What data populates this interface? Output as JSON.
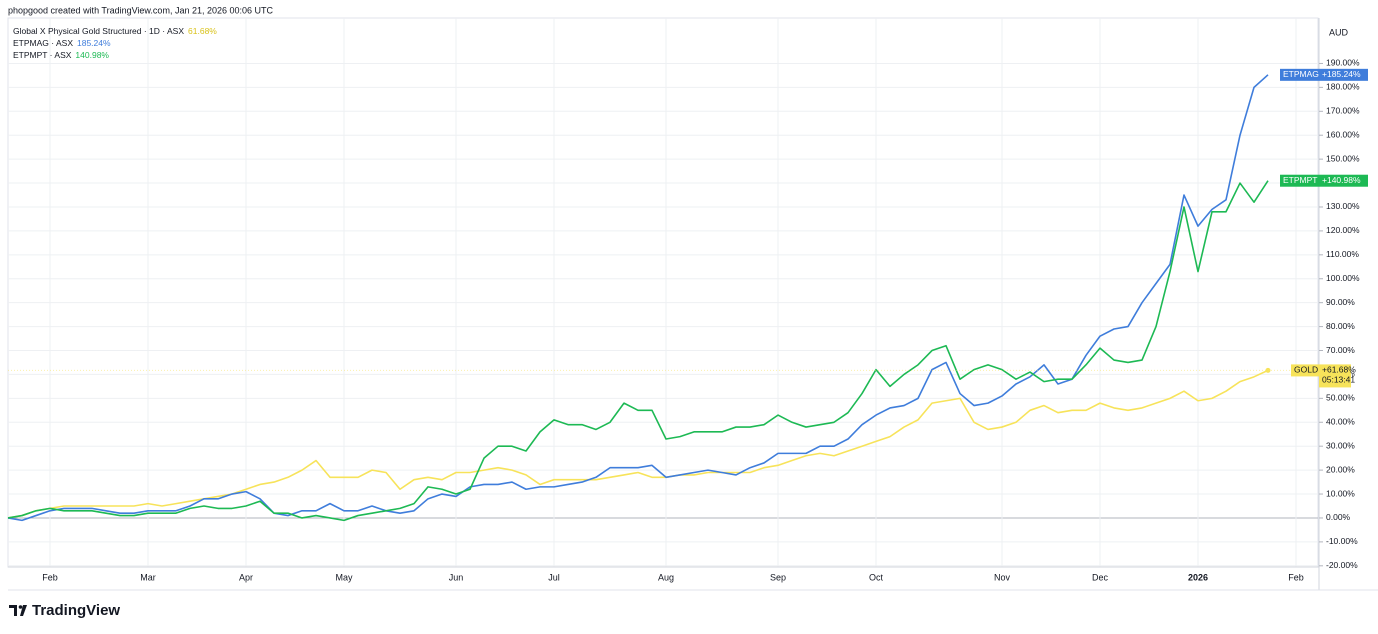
{
  "header": "phopgood created with TradingView.com, Jan 21, 2026 00:06 UTC",
  "brand": "TradingView",
  "chart_data": {
    "type": "line",
    "currency": "AUD",
    "categories": [
      null,
      null,
      null,
      "Feb",
      null,
      null,
      null,
      null,
      null,
      null,
      "Mar",
      null,
      null,
      null,
      null,
      null,
      null,
      "Apr",
      null,
      null,
      null,
      null,
      null,
      null,
      "May",
      null,
      null,
      null,
      null,
      null,
      null,
      null,
      "Jun",
      null,
      null,
      null,
      null,
      null,
      null,
      "Jul",
      null,
      null,
      null,
      null,
      null,
      null,
      null,
      "Aug",
      null,
      null,
      null,
      null,
      null,
      null,
      null,
      "Sep",
      null,
      null,
      null,
      null,
      null,
      null,
      "Oct",
      null,
      null,
      null,
      null,
      null,
      null,
      null,
      null,
      "Nov",
      null,
      null,
      null,
      null,
      null,
      null,
      "Dec",
      null,
      null,
      null,
      null,
      null,
      null,
      "2026",
      null,
      null,
      null,
      null,
      null,
      null,
      "Feb",
      null
    ],
    "series": [
      {
        "name": "GOLD",
        "legend": "Global X Physical Gold Structured · 1D · ASX",
        "legend_value": "61.68%",
        "tag": "+61.68%",
        "countdown": "05:13:41",
        "color": "#f7e35a",
        "values": [
          0,
          1,
          3,
          4,
          5,
          5,
          5,
          5,
          5,
          5,
          6,
          5,
          6,
          7,
          8,
          9,
          10,
          12,
          14,
          15,
          17,
          20,
          24,
          17,
          17,
          17,
          20,
          19,
          12,
          16,
          17,
          16,
          19,
          19,
          20,
          21,
          20,
          18,
          14,
          16,
          16,
          16,
          16,
          17,
          18,
          19,
          17,
          17,
          18,
          18,
          19,
          19,
          19,
          19,
          21,
          22,
          24,
          26,
          27,
          26,
          28,
          30,
          32,
          34,
          38,
          41,
          48,
          49,
          50,
          40,
          37,
          38,
          40,
          45,
          47,
          44,
          45,
          45,
          48,
          46,
          45,
          46,
          48,
          50,
          53,
          49,
          50,
          53,
          57,
          59,
          61.68,
          null,
          null,
          null
        ]
      },
      {
        "name": "ETPMAG",
        "legend": "ETPMAG · ASX",
        "legend_value": "185.24%",
        "tag": "+185.24%",
        "color": "#3f7ddb",
        "values": [
          0,
          -1,
          1,
          3,
          4,
          4,
          4,
          3,
          2,
          2,
          3,
          3,
          3,
          5,
          8,
          8,
          10,
          11,
          8,
          2,
          1,
          3,
          3,
          6,
          3,
          3,
          5,
          3,
          2,
          3,
          8,
          10,
          9,
          13,
          14,
          14,
          15,
          12,
          13,
          13,
          14,
          15,
          17,
          21,
          21,
          21,
          22,
          17,
          18,
          19,
          20,
          19,
          18,
          21,
          23,
          27,
          27,
          27,
          30,
          30,
          33,
          39,
          43,
          46,
          47,
          50,
          62,
          65,
          52,
          47,
          48,
          51,
          56,
          59,
          64,
          56,
          58,
          68,
          76,
          79,
          80,
          90,
          98,
          106,
          135,
          122,
          129,
          133,
          160,
          180,
          185.24,
          null,
          null,
          null
        ]
      },
      {
        "name": "ETPMPT",
        "legend": "ETPMPT · ASX",
        "legend_value": "140.98%",
        "tag": "+140.98%",
        "color": "#1db954",
        "values": [
          0,
          1,
          3,
          4,
          3,
          3,
          3,
          2,
          1,
          1,
          2,
          2,
          2,
          4,
          5,
          4,
          4,
          5,
          7,
          2,
          2,
          0,
          1,
          0,
          -1,
          1,
          2,
          3,
          4,
          6,
          13,
          12,
          10,
          12,
          25,
          30,
          30,
          28,
          36,
          41,
          39,
          39,
          37,
          40,
          48,
          45,
          45,
          33,
          34,
          36,
          36,
          36,
          38,
          38,
          39,
          43,
          40,
          38,
          39,
          40,
          44,
          52,
          62,
          55,
          60,
          64,
          70,
          72,
          58,
          62,
          64,
          62,
          58,
          61,
          57,
          58,
          58,
          64,
          71,
          66,
          65,
          66,
          80,
          103,
          130,
          103,
          128,
          128,
          140,
          132,
          140.98,
          null,
          null,
          null
        ]
      }
    ],
    "ylim": [
      -20.5,
      209
    ],
    "yticks": [
      {
        "value": -20,
        "label": "-20.00%"
      },
      {
        "value": -10,
        "label": "-10.00%"
      },
      {
        "value": 0,
        "label": "0.00%"
      },
      {
        "value": 10,
        "label": "10.00%"
      },
      {
        "value": 20,
        "label": "20.00%"
      },
      {
        "value": 30,
        "label": "30.00%"
      },
      {
        "value": 40,
        "label": "40.00%"
      },
      {
        "value": 50,
        "label": "50.00%"
      },
      {
        "value": 60,
        "label": "60.00%"
      },
      {
        "value": 70,
        "label": "70.00%"
      },
      {
        "value": 80,
        "label": "80.00%"
      },
      {
        "value": 90,
        "label": "90.00%"
      },
      {
        "value": 100,
        "label": "100.00%"
      },
      {
        "value": 110,
        "label": "110.00%"
      },
      {
        "value": 120,
        "label": "120.00%"
      },
      {
        "value": 130,
        "label": "130.00%"
      },
      {
        "value": 140,
        "label": "140.00%"
      },
      {
        "value": 150,
        "label": "150.00%"
      },
      {
        "value": 160,
        "label": "160.00%"
      },
      {
        "value": 170,
        "label": "170.00%"
      },
      {
        "value": 180,
        "label": "180.00%"
      },
      {
        "value": 190,
        "label": "190.00%"
      }
    ],
    "grid": true
  }
}
